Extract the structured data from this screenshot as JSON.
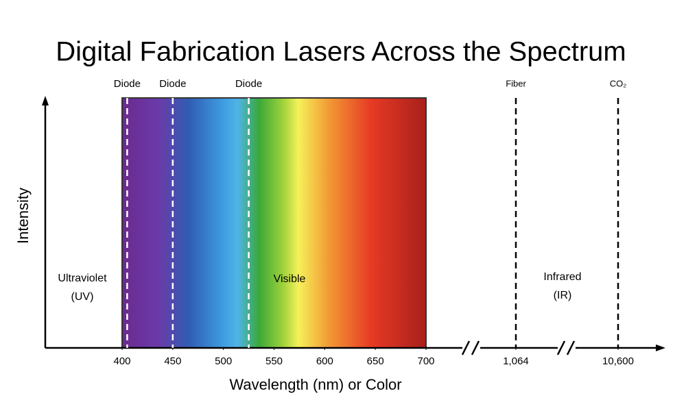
{
  "chart_data": {
    "type": "spectrum",
    "title": "Digital Fabrication Lasers Across the Spectrum",
    "x_label": "Wavelength (nm) or Color",
    "y_label": "Intensity",
    "visible_range": [
      400,
      700
    ],
    "xticks": [
      400,
      450,
      500,
      550,
      600,
      650,
      700,
      {
        "value": 1064,
        "label": "1,064"
      },
      {
        "value": 10600,
        "label": "10,600"
      }
    ],
    "lasers": [
      {
        "name": "Diode",
        "wavelength": 405
      },
      {
        "name": "Diode",
        "wavelength": 450
      },
      {
        "name": "Diode",
        "wavelength": 525
      },
      {
        "name": "Fiber",
        "wavelength": 1064
      },
      {
        "name": "CO₂",
        "wavelength": 10600
      }
    ],
    "regions": [
      {
        "lines": [
          "Ultraviolet",
          "(UV)"
        ]
      },
      {
        "lines": [
          "Visible"
        ]
      },
      {
        "lines": [
          "Infrared",
          "(IR)"
        ]
      }
    ]
  }
}
